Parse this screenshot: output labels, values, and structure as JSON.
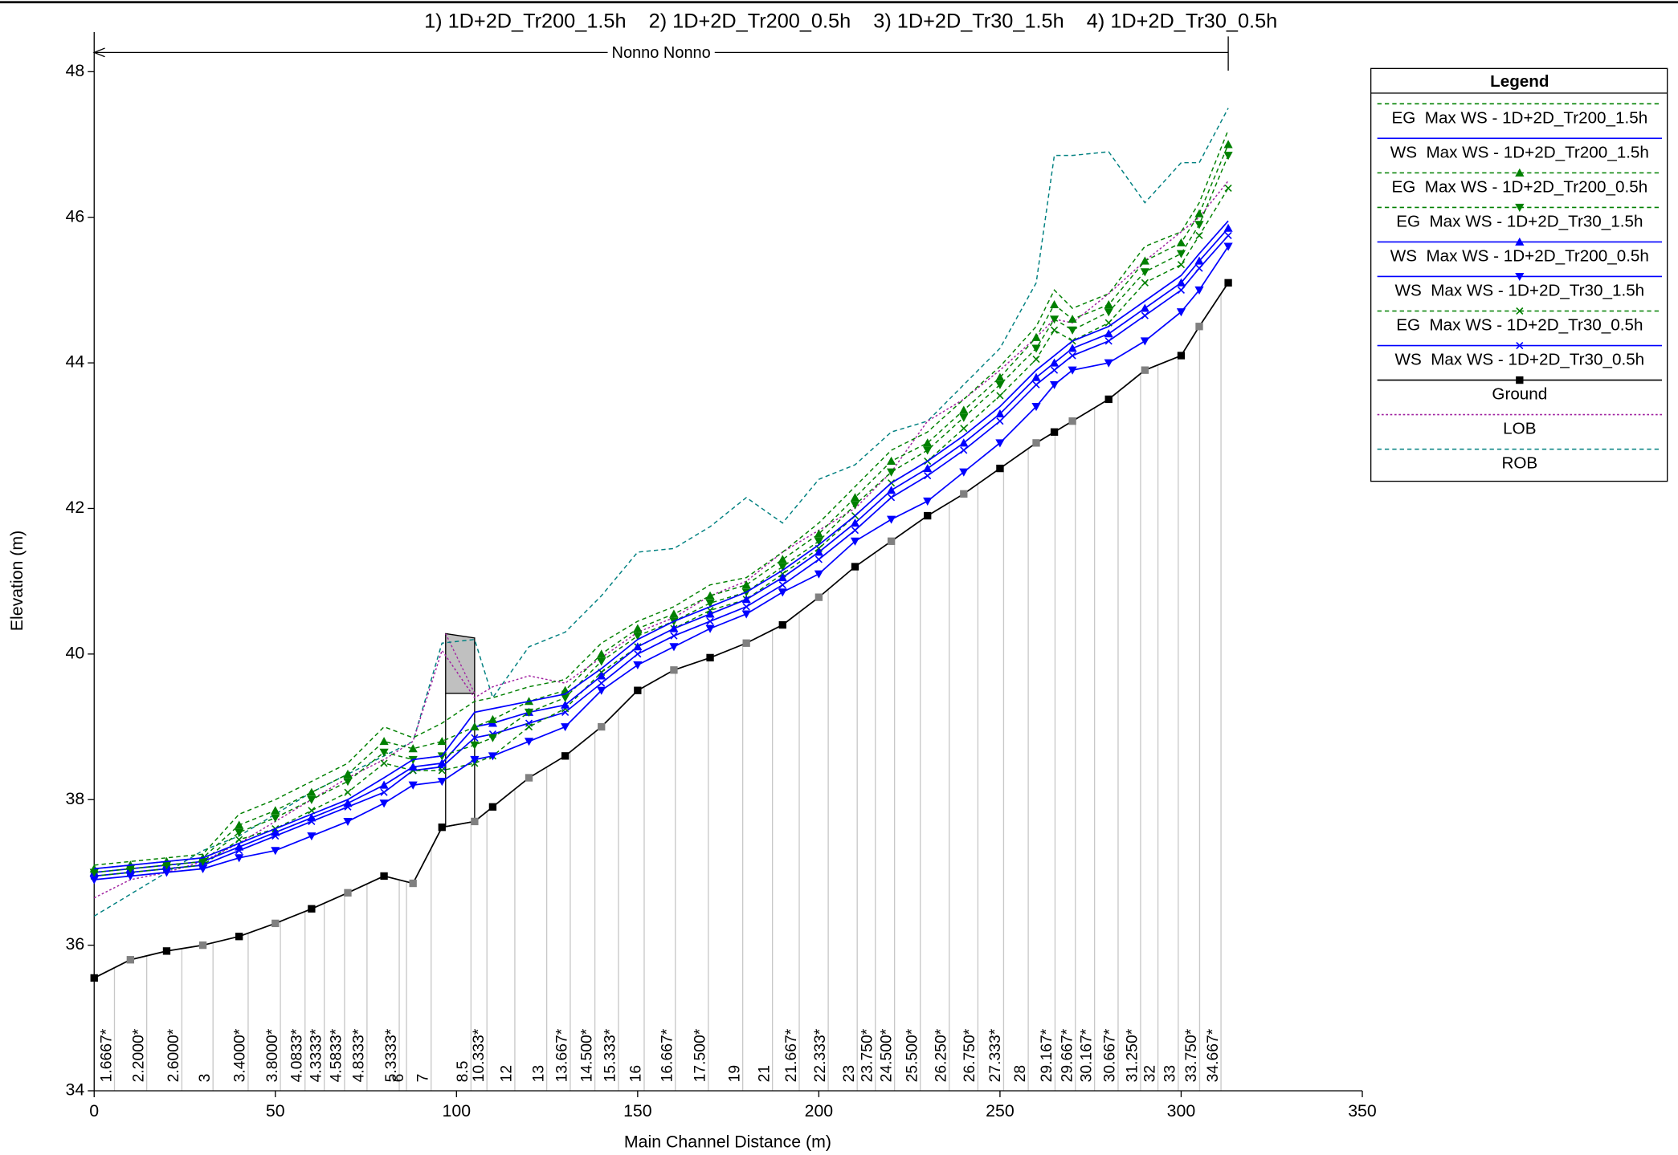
{
  "chart_data": {
    "type": "line",
    "title": "1) 1D+2D_Tr200_1.5h    2) 1D+2D_Tr200_0.5h    3) 1D+2D_Tr30_1.5h    4) 1D+2D_Tr30_0.5h",
    "x_label": "Main Channel Distance (m)",
    "y_label": "Elevation (m)",
    "legend_title": "Legend",
    "legend_position": "upper right outside",
    "annotation": {
      "text": "Nonno Nonno",
      "x_start": 0,
      "x_end": 313
    },
    "xlim": [
      0,
      350
    ],
    "xticks": [
      0,
      50,
      100,
      150,
      200,
      250,
      300,
      350
    ],
    "ylim": [
      34,
      48
    ],
    "yticks": [
      34,
      36,
      38,
      40,
      42,
      44,
      46,
      48
    ],
    "x": [
      0,
      10,
      20,
      30,
      40,
      50,
      60,
      70,
      80,
      88,
      96,
      105,
      110,
      120,
      130,
      140,
      150,
      160,
      170,
      180,
      190,
      200,
      210,
      220,
      230,
      240,
      250,
      260,
      265,
      270,
      280,
      290,
      300,
      305,
      313
    ],
    "series": [
      {
        "name": "EG  Max WS - 1D+2D_Tr200_1.5h",
        "color": "#008000",
        "dash": "dashed",
        "marker": "none",
        "values": [
          37.1,
          37.15,
          37.2,
          37.25,
          37.8,
          38.0,
          38.25,
          38.5,
          39.0,
          38.85,
          39.05,
          39.35,
          39.4,
          39.55,
          39.65,
          40.15,
          40.45,
          40.65,
          40.95,
          41.05,
          41.4,
          41.8,
          42.3,
          42.8,
          43.05,
          43.5,
          43.95,
          44.5,
          45.0,
          44.75,
          44.95,
          45.6,
          45.8,
          46.2,
          47.2
        ]
      },
      {
        "name": "WS  Max WS - 1D+2D_Tr200_1.5h",
        "color": "#0000ff",
        "dash": "solid",
        "marker": "none",
        "values": [
          37.05,
          37.1,
          37.15,
          37.2,
          37.4,
          37.6,
          37.8,
          38.0,
          38.3,
          38.55,
          38.6,
          39.2,
          39.25,
          39.35,
          39.45,
          39.8,
          40.2,
          40.45,
          40.65,
          40.85,
          41.15,
          41.5,
          41.9,
          42.35,
          42.65,
          43.0,
          43.4,
          43.9,
          44.1,
          44.3,
          44.5,
          44.85,
          45.2,
          45.5,
          45.95
        ]
      },
      {
        "name": "EG  Max WS - 1D+2D_Tr200_0.5h",
        "color": "#008000",
        "dash": "dashed",
        "marker": "triangle-up",
        "values": [
          37.05,
          37.1,
          37.15,
          37.2,
          37.65,
          37.85,
          38.1,
          38.35,
          38.8,
          38.7,
          38.8,
          39.0,
          39.1,
          39.35,
          39.5,
          40.0,
          40.35,
          40.55,
          40.8,
          40.95,
          41.3,
          41.65,
          42.15,
          42.65,
          42.9,
          43.35,
          43.8,
          44.35,
          44.8,
          44.6,
          44.8,
          45.4,
          45.65,
          46.05,
          47.0
        ]
      },
      {
        "name": "EG  Max WS - 1D+2D_Tr30_1.5h",
        "color": "#008000",
        "dash": "dashed",
        "marker": "triangle-down",
        "values": [
          37.0,
          37.05,
          37.1,
          37.15,
          37.55,
          37.75,
          38.0,
          38.25,
          38.65,
          38.55,
          38.6,
          38.75,
          38.85,
          39.2,
          39.4,
          39.9,
          40.25,
          40.45,
          40.7,
          40.85,
          41.2,
          41.55,
          42.05,
          42.5,
          42.8,
          43.25,
          43.7,
          44.2,
          44.6,
          44.45,
          44.7,
          45.25,
          45.5,
          45.9,
          46.85
        ]
      },
      {
        "name": "WS  Max WS - 1D+2D_Tr200_0.5h",
        "color": "#0000ff",
        "dash": "solid",
        "marker": "triangle-up",
        "values": [
          37.0,
          37.05,
          37.1,
          37.15,
          37.35,
          37.55,
          37.75,
          37.95,
          38.2,
          38.45,
          38.5,
          39.0,
          39.05,
          39.2,
          39.3,
          39.7,
          40.1,
          40.35,
          40.55,
          40.75,
          41.05,
          41.4,
          41.8,
          42.25,
          42.55,
          42.9,
          43.3,
          43.8,
          44.0,
          44.2,
          44.4,
          44.75,
          45.1,
          45.4,
          45.85
        ]
      },
      {
        "name": "WS  Max WS - 1D+2D_Tr30_1.5h",
        "color": "#0000ff",
        "dash": "solid",
        "marker": "triangle-down",
        "values": [
          36.9,
          36.95,
          37.0,
          37.05,
          37.2,
          37.3,
          37.5,
          37.7,
          37.95,
          38.2,
          38.25,
          38.55,
          38.6,
          38.8,
          39.0,
          39.5,
          39.85,
          40.1,
          40.35,
          40.55,
          40.85,
          41.1,
          41.55,
          41.85,
          42.1,
          42.5,
          42.9,
          43.4,
          43.7,
          43.9,
          44.0,
          44.3,
          44.7,
          45.0,
          45.6
        ]
      },
      {
        "name": "EG  Max WS - 1D+2D_Tr30_0.5h",
        "color": "#008000",
        "dash": "dashed",
        "marker": "x",
        "values": [
          36.95,
          37.0,
          37.05,
          37.1,
          37.45,
          37.6,
          37.85,
          38.1,
          38.5,
          38.4,
          38.4,
          38.5,
          38.6,
          39.0,
          39.25,
          39.75,
          40.1,
          40.35,
          40.6,
          40.75,
          41.1,
          41.45,
          41.9,
          42.35,
          42.65,
          43.1,
          43.55,
          44.05,
          44.45,
          44.3,
          44.55,
          45.1,
          45.35,
          45.75,
          46.4
        ]
      },
      {
        "name": "WS  Max WS - 1D+2D_Tr30_0.5h",
        "color": "#0000ff",
        "dash": "solid",
        "marker": "x",
        "values": [
          36.95,
          37.0,
          37.05,
          37.1,
          37.3,
          37.5,
          37.7,
          37.9,
          38.1,
          38.4,
          38.45,
          38.85,
          38.9,
          39.05,
          39.2,
          39.6,
          40.0,
          40.25,
          40.45,
          40.65,
          40.95,
          41.3,
          41.7,
          42.15,
          42.45,
          42.8,
          43.2,
          43.7,
          43.9,
          44.1,
          44.3,
          44.65,
          45.0,
          45.3,
          45.75
        ]
      },
      {
        "name": "Ground",
        "color": "#000000",
        "dash": "solid",
        "marker": "square",
        "values": [
          35.55,
          35.8,
          35.92,
          36.0,
          36.12,
          36.3,
          36.5,
          36.72,
          36.95,
          36.85,
          37.62,
          37.7,
          37.9,
          38.3,
          38.6,
          39.0,
          39.5,
          39.78,
          39.95,
          40.15,
          40.4,
          40.78,
          41.2,
          41.55,
          41.9,
          42.2,
          42.55,
          42.9,
          43.05,
          43.2,
          43.5,
          43.9,
          44.1,
          44.5,
          45.1
        ]
      },
      {
        "name": "LOB",
        "color": "#a020a0",
        "dash": "dotted",
        "marker": "none",
        "values": [
          36.65,
          36.9,
          37.0,
          37.15,
          37.4,
          37.7,
          38.0,
          38.3,
          38.55,
          38.8,
          40.05,
          39.4,
          39.55,
          39.7,
          39.6,
          39.95,
          40.3,
          40.5,
          40.8,
          41.0,
          41.4,
          41.7,
          42.0,
          42.5,
          43.2,
          43.5,
          43.9,
          44.35,
          44.6,
          44.55,
          44.95,
          45.4,
          45.8,
          46.0,
          46.5
        ]
      },
      {
        "name": "ROB",
        "color": "#008080",
        "dash": "dashed",
        "marker": "none",
        "values": [
          36.4,
          36.7,
          37.0,
          37.3,
          37.5,
          37.8,
          38.1,
          38.35,
          38.6,
          38.8,
          40.15,
          40.2,
          39.4,
          40.1,
          40.3,
          40.8,
          41.4,
          41.45,
          41.75,
          42.15,
          41.8,
          42.4,
          42.6,
          43.05,
          43.2,
          43.7,
          44.2,
          45.1,
          46.85,
          46.85,
          46.9,
          46.2,
          46.75,
          46.75,
          47.5
        ]
      }
    ],
    "bridge": {
      "x_start": 97,
      "x_end": 105,
      "top": 40.28,
      "low_chord": 39.46
    },
    "stations": [
      {
        "x": 5.6,
        "label": "1.6667*"
      },
      {
        "x": 14.5,
        "label": "2.2000*"
      },
      {
        "x": 24.2,
        "label": "2.6000*"
      },
      {
        "x": 32.8,
        "label": "3"
      },
      {
        "x": 42.5,
        "label": "3.4000*"
      },
      {
        "x": 51.4,
        "label": "3.8000*"
      },
      {
        "x": 58.2,
        "label": "4.0833*"
      },
      {
        "x": 63.5,
        "label": "4.3333*"
      },
      {
        "x": 69.1,
        "label": "4.5833*"
      },
      {
        "x": 75.3,
        "label": "4.8333*"
      },
      {
        "x": 84.2,
        "label": "5.3333*"
      },
      {
        "x": 86.2,
        "label": "6"
      },
      {
        "x": 93.0,
        "label": "7"
      },
      {
        "x": 104.0,
        "label": "8.5"
      },
      {
        "x": 108.4,
        "label": "10.333*"
      },
      {
        "x": 116.1,
        "label": "12"
      },
      {
        "x": 124.9,
        "label": "13"
      },
      {
        "x": 131.4,
        "label": "13.667*"
      },
      {
        "x": 138.2,
        "label": "14.500*"
      },
      {
        "x": 144.7,
        "label": "15.333*"
      },
      {
        "x": 151.8,
        "label": "16"
      },
      {
        "x": 160.4,
        "label": "16.667*"
      },
      {
        "x": 169.5,
        "label": "17.500*"
      },
      {
        "x": 179.0,
        "label": "19"
      },
      {
        "x": 187.2,
        "label": "21"
      },
      {
        "x": 194.6,
        "label": "21.667*"
      },
      {
        "x": 202.6,
        "label": "22.333*"
      },
      {
        "x": 210.6,
        "label": "23"
      },
      {
        "x": 215.6,
        "label": "23.750*"
      },
      {
        "x": 220.9,
        "label": "24.500*"
      },
      {
        "x": 228.0,
        "label": "25.500*"
      },
      {
        "x": 236.0,
        "label": "26.250*"
      },
      {
        "x": 243.9,
        "label": "26.750*"
      },
      {
        "x": 251.0,
        "label": "27.333*"
      },
      {
        "x": 257.8,
        "label": "28"
      },
      {
        "x": 265.2,
        "label": "29.167*"
      },
      {
        "x": 270.8,
        "label": "29.667*"
      },
      {
        "x": 276.1,
        "label": "30.167*"
      },
      {
        "x": 282.6,
        "label": "30.667*"
      },
      {
        "x": 288.8,
        "label": "31.250*"
      },
      {
        "x": 293.6,
        "label": "32"
      },
      {
        "x": 299.2,
        "label": "33"
      },
      {
        "x": 305.1,
        "label": "33.750*"
      },
      {
        "x": 311.0,
        "label": "34.667*"
      }
    ]
  }
}
